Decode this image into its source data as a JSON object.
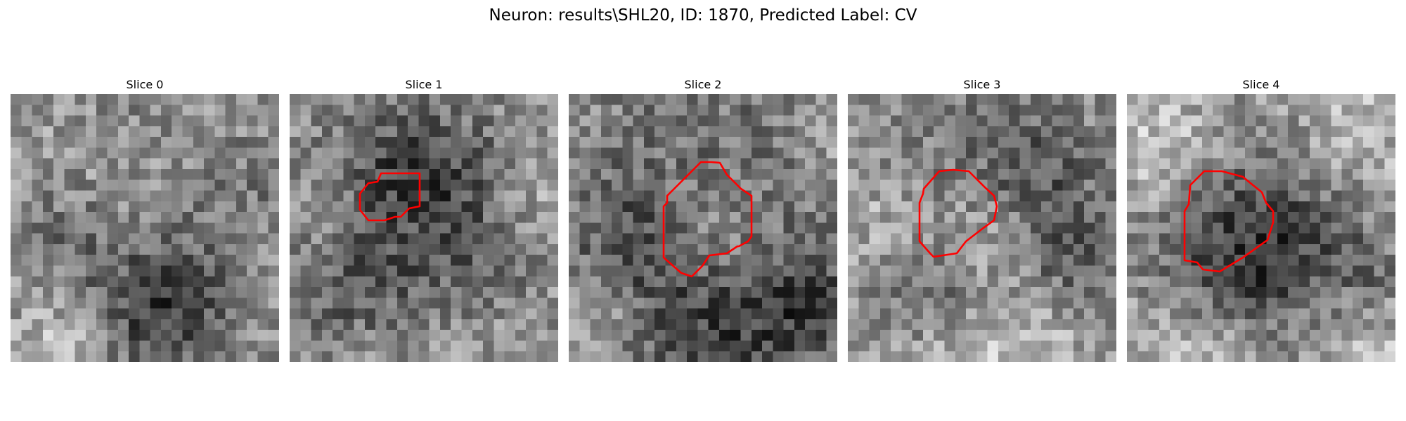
{
  "figure": {
    "title": "Neuron: results\\SHL20, ID: 1870, Predicted Label: CV"
  },
  "colors": {
    "background": "#ffffff",
    "contour": "#ff0000",
    "image_colormap": "grayscale"
  },
  "panels": [
    {
      "title": "Slice 0",
      "has_contour": false
    },
    {
      "title": "Slice 1",
      "has_contour": true
    },
    {
      "title": "Slice 2",
      "has_contour": true
    },
    {
      "title": "Slice 3",
      "has_contour": true
    },
    {
      "title": "Slice 4",
      "has_contour": true
    }
  ]
}
